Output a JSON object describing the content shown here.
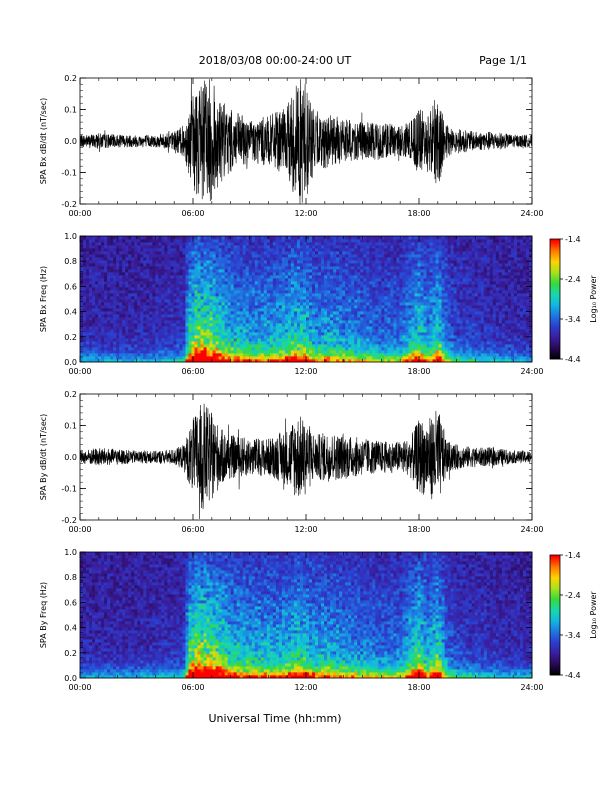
{
  "header": {
    "title": "2018/03/08  00:00-24:00 UT",
    "page": "Page 1/1"
  },
  "footer": {
    "xlabel": "Universal Time (hh:mm)"
  },
  "colors": {
    "scale": [
      "#000000",
      "#2a0a5a",
      "#3a1fa0",
      "#2b3fd0",
      "#1f78e0",
      "#13b8e0",
      "#19d8a8",
      "#3ad83a",
      "#a8e020",
      "#ffd400",
      "#ff7a00",
      "#ff0000"
    ],
    "trace": "#000000"
  },
  "chart_data": [
    {
      "type": "line",
      "ylabel": "SPA Bx dB/dt (nT/sec)",
      "xlim": [
        "00:00",
        "24:00"
      ],
      "xticks": [
        "00:00",
        "06:00",
        "12:00",
        "18:00",
        "24:00"
      ],
      "ylim": [
        -0.2,
        0.2
      ],
      "yticks": [
        "-0.2",
        "-0.1",
        "0.0",
        "0.1",
        "0.2"
      ],
      "envelope": {
        "hours": [
          0,
          1,
          2,
          3,
          4,
          5,
          5.5,
          6,
          6.5,
          7,
          7.5,
          8,
          9,
          10,
          11,
          11.5,
          12,
          12.5,
          13,
          14,
          15,
          16,
          17,
          17.5,
          18,
          18.5,
          19,
          19.5,
          20,
          21,
          22,
          23,
          24
        ],
        "amplitude": [
          0.02,
          0.025,
          0.02,
          0.02,
          0.02,
          0.03,
          0.05,
          0.15,
          0.2,
          0.2,
          0.13,
          0.1,
          0.07,
          0.08,
          0.11,
          0.2,
          0.2,
          0.08,
          0.09,
          0.07,
          0.06,
          0.06,
          0.05,
          0.06,
          0.1,
          0.1,
          0.15,
          0.05,
          0.04,
          0.03,
          0.03,
          0.02,
          0.02
        ]
      }
    },
    {
      "type": "heatmap",
      "ylabel": "SPA Bx Freq (Hz)",
      "xlim": [
        "00:00",
        "24:00"
      ],
      "xticks": [
        "00:00",
        "06:00",
        "12:00",
        "18:00",
        "24:00"
      ],
      "ylim": [
        0.0,
        1.0
      ],
      "yticks": [
        "0.0",
        "0.2",
        "0.4",
        "0.6",
        "0.8",
        "1.0"
      ],
      "colorbar": {
        "label": "Log₁₀ Power",
        "range": [
          -4.4,
          -1.4
        ],
        "ticks": [
          "-1.4",
          "-2.4",
          "-3.4",
          "-4.4"
        ]
      },
      "activity": {
        "hours": [
          0,
          3,
          5.5,
          5.8,
          6.2,
          7,
          8,
          9,
          10,
          11,
          11.5,
          12,
          12.5,
          13,
          14,
          15,
          16,
          17,
          18,
          18.5,
          19,
          19.5,
          20,
          22,
          24
        ],
        "level": [
          0.05,
          0.05,
          0.1,
          0.55,
          0.75,
          0.7,
          0.45,
          0.4,
          0.4,
          0.45,
          0.55,
          0.5,
          0.35,
          0.4,
          0.35,
          0.3,
          0.25,
          0.25,
          0.55,
          0.35,
          0.55,
          0.25,
          0.15,
          0.08,
          0.05
        ]
      }
    },
    {
      "type": "line",
      "ylabel": "SPA By dB/dt (nT/sec)",
      "xlim": [
        "00:00",
        "24:00"
      ],
      "xticks": [
        "00:00",
        "06:00",
        "12:00",
        "18:00",
        "24:00"
      ],
      "ylim": [
        -0.2,
        0.2
      ],
      "yticks": [
        "-0.2",
        "-0.1",
        "0.0",
        "0.1",
        "0.2"
      ],
      "envelope": {
        "hours": [
          0,
          1,
          2,
          3,
          4,
          5,
          5.5,
          6,
          6.5,
          7,
          7.5,
          8,
          9,
          10,
          11,
          11.5,
          12,
          12.5,
          13,
          14,
          15,
          16,
          17,
          17.5,
          18,
          18.5,
          19,
          19.5,
          20,
          21,
          22,
          23,
          24
        ],
        "amplitude": [
          0.02,
          0.03,
          0.025,
          0.02,
          0.02,
          0.025,
          0.04,
          0.12,
          0.18,
          0.14,
          0.09,
          0.07,
          0.06,
          0.06,
          0.09,
          0.14,
          0.12,
          0.07,
          0.08,
          0.07,
          0.06,
          0.05,
          0.05,
          0.06,
          0.12,
          0.12,
          0.16,
          0.05,
          0.04,
          0.03,
          0.03,
          0.02,
          0.02
        ]
      }
    },
    {
      "type": "heatmap",
      "ylabel": "SPA By Freq (Hz)",
      "xlim": [
        "00:00",
        "24:00"
      ],
      "xticks": [
        "00:00",
        "06:00",
        "12:00",
        "18:00",
        "24:00"
      ],
      "ylim": [
        0.0,
        1.0
      ],
      "yticks": [
        "0.0",
        "0.2",
        "0.4",
        "0.6",
        "0.8",
        "1.0"
      ],
      "colorbar": {
        "label": "Log₁₀ Power",
        "range": [
          -4.4,
          -1.4
        ],
        "ticks": [
          "-1.4",
          "-2.4",
          "-3.4",
          "-4.4"
        ]
      },
      "activity": {
        "hours": [
          0,
          3,
          5.5,
          5.8,
          6.2,
          7,
          8,
          9,
          10,
          11,
          11.5,
          12,
          12.5,
          13,
          14,
          15,
          16,
          17,
          18,
          18.5,
          19,
          19.5,
          20,
          22,
          24
        ],
        "level": [
          0.05,
          0.05,
          0.1,
          0.6,
          0.8,
          0.72,
          0.5,
          0.45,
          0.42,
          0.45,
          0.55,
          0.5,
          0.4,
          0.42,
          0.38,
          0.32,
          0.28,
          0.28,
          0.6,
          0.4,
          0.6,
          0.25,
          0.15,
          0.08,
          0.05
        ]
      }
    }
  ]
}
